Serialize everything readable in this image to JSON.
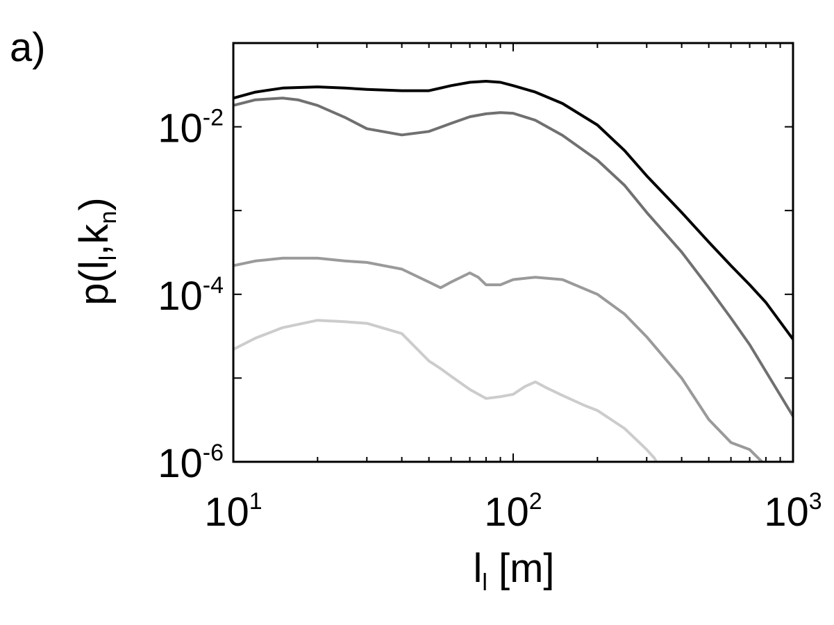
{
  "panel_label": "a)",
  "chart_data": {
    "type": "line",
    "xlabel": {
      "main": "l",
      "sub": "l",
      "rest": " [m]"
    },
    "ylabel": {
      "pre": "p(l",
      "sub1": "l",
      "mid": ",k",
      "sub2": "n",
      "post": ")"
    },
    "x_scale": "log",
    "y_scale": "log",
    "xlim": [
      10,
      1000
    ],
    "ylim": [
      1e-06,
      0.1
    ],
    "x_ticks": [
      {
        "value": 10,
        "base": "10",
        "exp": "1"
      },
      {
        "value": 100,
        "base": "10",
        "exp": "2"
      },
      {
        "value": 1000,
        "base": "10",
        "exp": "3"
      }
    ],
    "y_ticks": [
      {
        "value": 0.01,
        "base": "10",
        "exp": "-2"
      },
      {
        "value": 0.0001,
        "base": "10",
        "exp": "-4"
      },
      {
        "value": 1e-06,
        "base": "10",
        "exp": "-6"
      }
    ],
    "grid": false,
    "series": [
      {
        "color": "#000000",
        "x": [
          10,
          12,
          15,
          20,
          25,
          30,
          40,
          50,
          60,
          70,
          80,
          90,
          100,
          120,
          150,
          200,
          250,
          300,
          400,
          500,
          600,
          700,
          800,
          1000
        ],
        "y": [
          0.022,
          0.026,
          0.029,
          0.03,
          0.029,
          0.028,
          0.027,
          0.027,
          0.031,
          0.034,
          0.035,
          0.034,
          0.031,
          0.026,
          0.019,
          0.0105,
          0.0052,
          0.0026,
          0.00095,
          0.00042,
          0.00022,
          0.00013,
          8e-05,
          2.9e-05
        ]
      },
      {
        "color": "#707070",
        "x": [
          10,
          12,
          15,
          17,
          20,
          25,
          30,
          40,
          50,
          60,
          70,
          80,
          90,
          100,
          120,
          150,
          200,
          250,
          300,
          400,
          500,
          600,
          700,
          800,
          1000
        ],
        "y": [
          0.018,
          0.021,
          0.022,
          0.021,
          0.018,
          0.013,
          0.0095,
          0.008,
          0.0088,
          0.011,
          0.0132,
          0.0143,
          0.0148,
          0.0145,
          0.012,
          0.0079,
          0.004,
          0.002,
          0.00095,
          0.00032,
          0.00012,
          5.2e-05,
          2.5e-05,
          1.2e-05,
          3.5e-06
        ]
      },
      {
        "color": "#9a9a9a",
        "x": [
          10,
          12,
          15,
          20,
          25,
          30,
          40,
          50,
          55,
          60,
          70,
          75,
          80,
          90,
          100,
          120,
          150,
          200,
          250,
          300,
          400,
          500,
          600,
          700,
          800
        ],
        "y": [
          0.00022,
          0.00025,
          0.00027,
          0.00027,
          0.00025,
          0.00024,
          0.0002,
          0.00014,
          0.00012,
          0.00014,
          0.00018,
          0.00016,
          0.00013,
          0.00013,
          0.00015,
          0.00016,
          0.00015,
          0.0001,
          5.8e-05,
          3.1e-05,
          1e-05,
          3.2e-06,
          1.7e-06,
          1.4e-06,
          9e-07
        ]
      },
      {
        "color": "#cccccc",
        "x": [
          10,
          12,
          15,
          20,
          25,
          30,
          40,
          50,
          55,
          60,
          70,
          80,
          90,
          100,
          110,
          120,
          130,
          150,
          180,
          200,
          250,
          300,
          320,
          330
        ],
        "y": [
          2.2e-05,
          3e-05,
          4e-05,
          4.9e-05,
          4.7e-05,
          4.5e-05,
          3.4e-05,
          1.6e-05,
          1.3e-05,
          1.05e-05,
          7.3e-06,
          5.7e-06,
          6e-06,
          6.4e-06,
          7.9e-06,
          9e-06,
          7.8e-06,
          6.2e-06,
          4.7e-06,
          4.1e-06,
          2.5e-06,
          1.4e-06,
          1.1e-06,
          9e-07
        ]
      }
    ]
  }
}
